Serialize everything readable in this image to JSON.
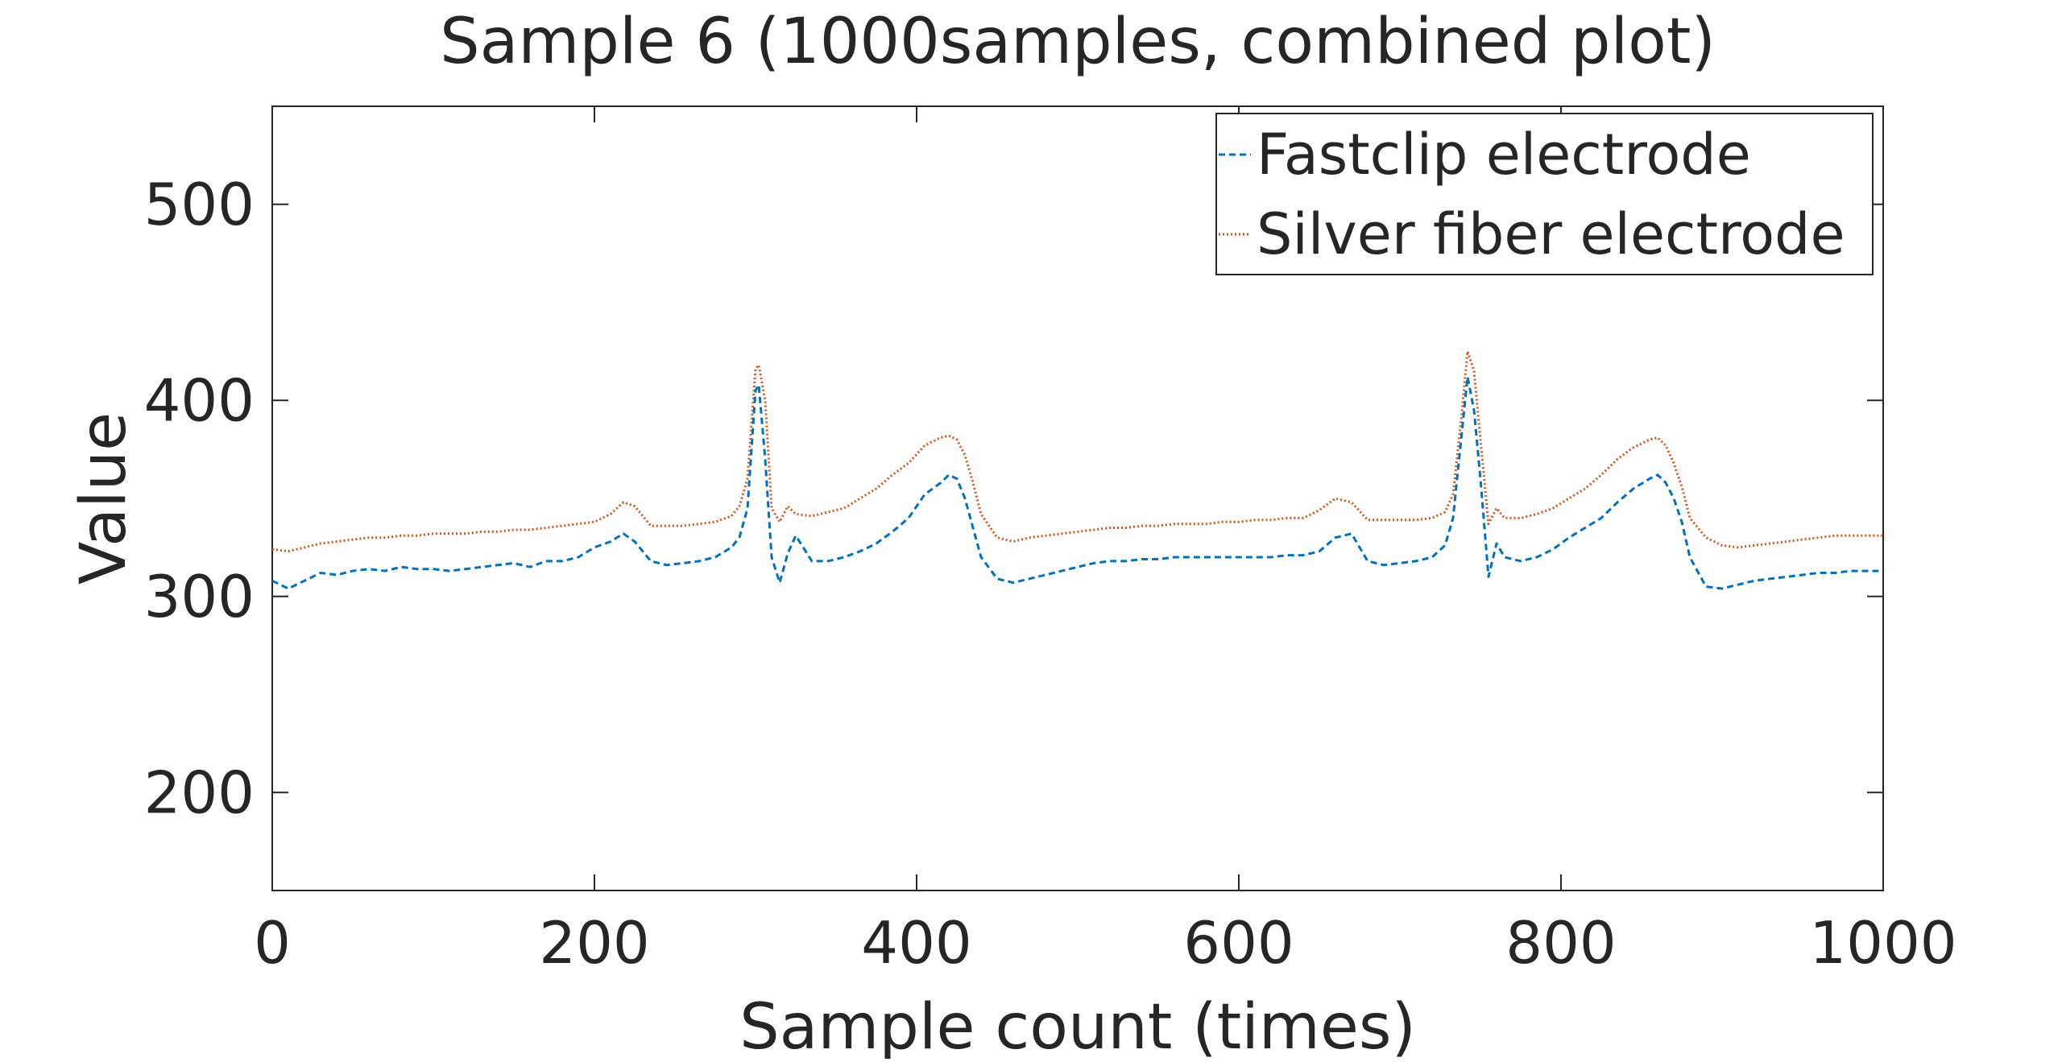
{
  "chart_data": {
    "type": "line",
    "title": "Sample 6 (1000samples, combined plot)",
    "xlabel": "Sample count (times)",
    "ylabel": "Value",
    "xlim": [
      0,
      1000
    ],
    "ylim": [
      150,
      550
    ],
    "xticks": [
      0,
      200,
      400,
      600,
      800,
      1000
    ],
    "xtick_labels": [
      "0",
      "200",
      "400",
      "600",
      "800",
      "1000"
    ],
    "yticks": [
      200,
      300,
      400,
      500
    ],
    "ytick_labels": [
      "200",
      "300",
      "400",
      "500"
    ],
    "grid": false,
    "legend_position": "top-right",
    "x": [
      0,
      10,
      20,
      30,
      40,
      50,
      60,
      70,
      80,
      90,
      100,
      110,
      120,
      130,
      140,
      150,
      160,
      170,
      180,
      190,
      200,
      210,
      218,
      225,
      235,
      245,
      255,
      265,
      275,
      285,
      290,
      295,
      300,
      302,
      306,
      310,
      315,
      320,
      325,
      335,
      345,
      355,
      365,
      375,
      385,
      395,
      405,
      415,
      420,
      425,
      430,
      435,
      440,
      450,
      460,
      470,
      480,
      490,
      500,
      510,
      520,
      530,
      540,
      550,
      560,
      570,
      580,
      590,
      600,
      610,
      620,
      630,
      640,
      650,
      660,
      670,
      680,
      690,
      700,
      710,
      720,
      728,
      733,
      738,
      742,
      746,
      750,
      755,
      760,
      765,
      775,
      785,
      795,
      805,
      815,
      825,
      835,
      845,
      855,
      860,
      865,
      870,
      875,
      880,
      890,
      900,
      910,
      920,
      930,
      940,
      950,
      960,
      970,
      980,
      990,
      1000
    ],
    "series": [
      {
        "name": "Fastclip electrode",
        "color": "#0072BD",
        "style": "dashed",
        "values": [
          308,
          304,
          308,
          312,
          311,
          313,
          314,
          313,
          315,
          314,
          314,
          313,
          314,
          315,
          316,
          317,
          315,
          318,
          318,
          320,
          325,
          328,
          332,
          328,
          318,
          316,
          317,
          318,
          320,
          325,
          330,
          345,
          405,
          408,
          370,
          320,
          307,
          322,
          331,
          318,
          318,
          320,
          323,
          327,
          333,
          340,
          352,
          358,
          362,
          360,
          350,
          335,
          320,
          309,
          307,
          309,
          311,
          313,
          315,
          317,
          318,
          318,
          319,
          319,
          320,
          320,
          320,
          320,
          320,
          320,
          320,
          321,
          321,
          323,
          330,
          332,
          318,
          316,
          317,
          318,
          320,
          326,
          340,
          380,
          412,
          395,
          360,
          310,
          327,
          320,
          318,
          320,
          324,
          330,
          335,
          340,
          348,
          355,
          360,
          362,
          358,
          350,
          338,
          320,
          305,
          304,
          306,
          308,
          309,
          310,
          311,
          312,
          312,
          313,
          313,
          313
        ]
      },
      {
        "name": "Silver fiber electrode",
        "color": "#D95319",
        "style": "dotted",
        "values": [
          324,
          323,
          325,
          327,
          328,
          329,
          330,
          330,
          331,
          331,
          332,
          332,
          332,
          333,
          333,
          334,
          334,
          335,
          336,
          337,
          338,
          342,
          348,
          346,
          336,
          336,
          336,
          337,
          338,
          341,
          346,
          360,
          416,
          418,
          400,
          345,
          338,
          346,
          342,
          341,
          343,
          345,
          350,
          355,
          362,
          368,
          377,
          381,
          382,
          380,
          372,
          358,
          342,
          330,
          328,
          330,
          331,
          332,
          333,
          334,
          335,
          335,
          336,
          336,
          337,
          337,
          337,
          338,
          338,
          339,
          339,
          340,
          340,
          344,
          350,
          348,
          339,
          339,
          339,
          339,
          340,
          343,
          352,
          390,
          425,
          415,
          380,
          337,
          345,
          340,
          340,
          342,
          345,
          350,
          355,
          362,
          370,
          376,
          380,
          381,
          377,
          368,
          356,
          340,
          330,
          326,
          325,
          326,
          327,
          328,
          329,
          330,
          331,
          331,
          331,
          331
        ]
      }
    ]
  }
}
